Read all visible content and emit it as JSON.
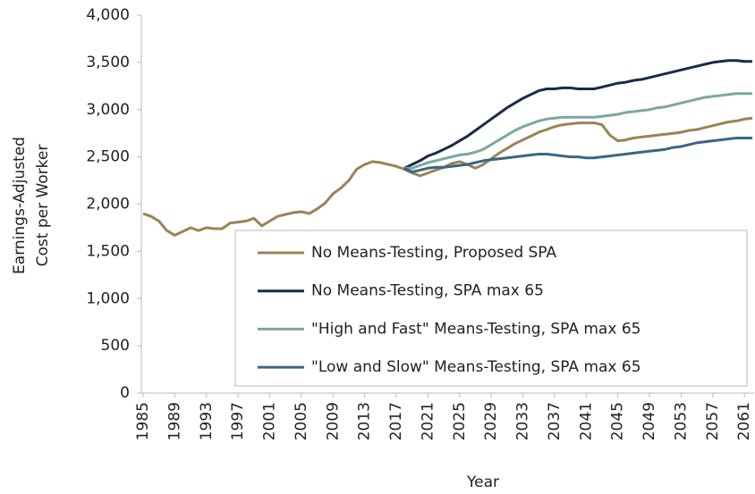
{
  "chart_data": {
    "type": "line",
    "xlabel": "Year",
    "ylabel": [
      "Earnings-Adjusted",
      "Cost per Worker"
    ],
    "x": [
      1985,
      1986,
      1987,
      1988,
      1989,
      1990,
      1991,
      1992,
      1993,
      1994,
      1995,
      1996,
      1997,
      1998,
      1999,
      2000,
      2001,
      2002,
      2003,
      2004,
      2005,
      2006,
      2007,
      2008,
      2009,
      2010,
      2011,
      2012,
      2013,
      2014,
      2015,
      2016,
      2017,
      2018,
      2019,
      2020,
      2021,
      2022,
      2023,
      2024,
      2025,
      2026,
      2027,
      2028,
      2029,
      2030,
      2031,
      2032,
      2033,
      2034,
      2035,
      2036,
      2037,
      2038,
      2039,
      2040,
      2041,
      2042,
      2043,
      2044,
      2045,
      2046,
      2047,
      2048,
      2049,
      2050,
      2051,
      2052,
      2053,
      2054,
      2055,
      2056,
      2057,
      2058,
      2059,
      2060,
      2061,
      2062
    ],
    "series": [
      {
        "name": "No Means-Testing, Proposed SPA",
        "color": "#9a8358",
        "values": [
          1900,
          1870,
          1820,
          1720,
          1670,
          1710,
          1750,
          1720,
          1750,
          1740,
          1740,
          1800,
          1810,
          1820,
          1850,
          1770,
          1820,
          1870,
          1890,
          1910,
          1920,
          1900,
          1950,
          2010,
          2110,
          2170,
          2250,
          2370,
          2420,
          2450,
          2440,
          2420,
          2400,
          2370,
          2330,
          2300,
          2330,
          2360,
          2390,
          2430,
          2450,
          2420,
          2380,
          2420,
          2480,
          2540,
          2590,
          2640,
          2680,
          2720,
          2760,
          2790,
          2820,
          2840,
          2850,
          2860,
          2860,
          2860,
          2840,
          2730,
          2670,
          2680,
          2700,
          2710,
          2720,
          2730,
          2740,
          2750,
          2760,
          2780,
          2790,
          2810,
          2830,
          2850,
          2870,
          2880,
          2900,
          2910
        ]
      },
      {
        "name": "No Means-Testing, SPA max 65",
        "color": "#1b2a4a",
        "values": [
          null,
          null,
          null,
          null,
          null,
          null,
          null,
          null,
          null,
          null,
          null,
          null,
          null,
          null,
          null,
          null,
          null,
          null,
          null,
          null,
          null,
          null,
          null,
          null,
          null,
          null,
          null,
          null,
          null,
          null,
          null,
          null,
          null,
          2380,
          2420,
          2460,
          2510,
          2540,
          2580,
          2620,
          2670,
          2720,
          2780,
          2840,
          2900,
          2960,
          3020,
          3070,
          3120,
          3160,
          3200,
          3220,
          3220,
          3230,
          3230,
          3220,
          3220,
          3220,
          3240,
          3260,
          3280,
          3290,
          3310,
          3320,
          3340,
          3360,
          3380,
          3400,
          3420,
          3440,
          3460,
          3480,
          3500,
          3510,
          3520,
          3520,
          3510,
          3510
        ]
      },
      {
        "name": "\"High and Fast\" Means-Testing, SPA max 65",
        "color": "#7aa8a0",
        "values": [
          null,
          null,
          null,
          null,
          null,
          null,
          null,
          null,
          null,
          null,
          null,
          null,
          null,
          null,
          null,
          null,
          null,
          null,
          null,
          null,
          null,
          null,
          null,
          null,
          null,
          null,
          null,
          null,
          null,
          null,
          null,
          null,
          null,
          2380,
          2380,
          2410,
          2440,
          2460,
          2480,
          2500,
          2520,
          2530,
          2550,
          2580,
          2630,
          2680,
          2730,
          2780,
          2820,
          2850,
          2880,
          2900,
          2910,
          2920,
          2920,
          2920,
          2920,
          2920,
          2930,
          2940,
          2950,
          2970,
          2980,
          2990,
          3000,
          3020,
          3030,
          3050,
          3070,
          3090,
          3110,
          3130,
          3140,
          3150,
          3160,
          3170,
          3170,
          3170
        ]
      },
      {
        "name": "\"Low and Slow\" Means-Testing, SPA max 65",
        "color": "#3b6683",
        "values": [
          null,
          null,
          null,
          null,
          null,
          null,
          null,
          null,
          null,
          null,
          null,
          null,
          null,
          null,
          null,
          null,
          null,
          null,
          null,
          null,
          null,
          null,
          null,
          null,
          null,
          null,
          null,
          null,
          null,
          null,
          null,
          null,
          null,
          2380,
          2340,
          2360,
          2380,
          2390,
          2390,
          2400,
          2410,
          2420,
          2440,
          2460,
          2470,
          2480,
          2490,
          2500,
          2510,
          2520,
          2530,
          2530,
          2520,
          2510,
          2500,
          2500,
          2490,
          2490,
          2500,
          2510,
          2520,
          2530,
          2540,
          2550,
          2560,
          2570,
          2580,
          2600,
          2610,
          2630,
          2650,
          2660,
          2670,
          2680,
          2690,
          2700,
          2700,
          2700
        ]
      }
    ],
    "xlim": [
      1985,
      2062
    ],
    "xticks": [
      1985,
      1989,
      1993,
      1997,
      2001,
      2005,
      2009,
      2013,
      2017,
      2021,
      2025,
      2029,
      2033,
      2037,
      2041,
      2045,
      2049,
      2053,
      2057,
      2061
    ],
    "ylim": [
      0,
      4000
    ],
    "yticks": [
      0,
      500,
      {
        "value": 1000,
        "label": "1,000"
      },
      {
        "value": 1500,
        "label": "1,500"
      },
      {
        "value": 2000,
        "label": "2,000"
      },
      {
        "value": 2500,
        "label": "2,500"
      },
      {
        "value": 3000,
        "label": "3,000"
      },
      {
        "value": 3500,
        "label": "3,500"
      },
      {
        "value": 4000,
        "label": "4,000"
      }
    ],
    "grid": false,
    "legend": "lower right"
  }
}
